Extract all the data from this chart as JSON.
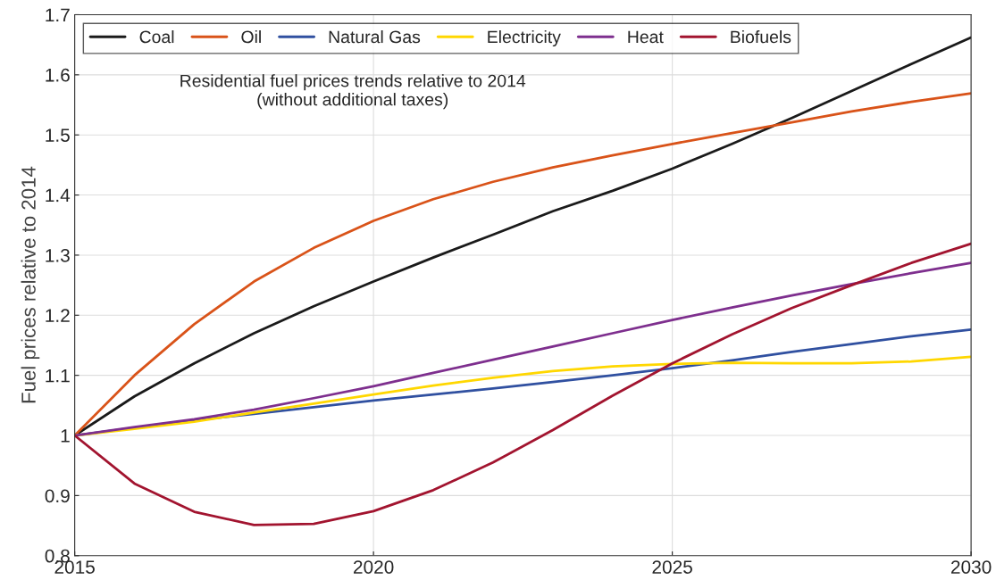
{
  "chart_data": {
    "type": "line",
    "title": "Residential fuel prices trends relative to 2014\n(without additional taxes)",
    "ylabel": "Fuel prices relative to 2014",
    "x": [
      2015,
      2016,
      2017,
      2018,
      2019,
      2020,
      2021,
      2022,
      2023,
      2024,
      2025,
      2026,
      2027,
      2028,
      2029,
      2030
    ],
    "series": [
      {
        "name": "Coal",
        "color": "#1a1a1a",
        "values": [
          1.0,
          1.065,
          1.12,
          1.17,
          1.215,
          1.256,
          1.296,
          1.334,
          1.373,
          1.407,
          1.444,
          1.485,
          1.528,
          1.573,
          1.618,
          1.662
        ]
      },
      {
        "name": "Oil",
        "color": "#d95319",
        "values": [
          1.0,
          1.1,
          1.185,
          1.256,
          1.312,
          1.357,
          1.393,
          1.422,
          1.446,
          1.466,
          1.485,
          1.503,
          1.521,
          1.539,
          1.555,
          1.569
        ]
      },
      {
        "name": "Natural Gas",
        "color": "#3050a0",
        "values": [
          1.0,
          1.013,
          1.025,
          1.036,
          1.047,
          1.058,
          1.068,
          1.078,
          1.089,
          1.1,
          1.112,
          1.125,
          1.139,
          1.152,
          1.165,
          1.176
        ]
      },
      {
        "name": "Electricity",
        "color": "#ffd700",
        "values": [
          1.0,
          1.011,
          1.023,
          1.038,
          1.053,
          1.068,
          1.083,
          1.096,
          1.107,
          1.115,
          1.119,
          1.121,
          1.12,
          1.12,
          1.123,
          1.131
        ]
      },
      {
        "name": "Heat",
        "color": "#7e2f8e",
        "values": [
          1.0,
          1.014,
          1.027,
          1.043,
          1.062,
          1.082,
          1.104,
          1.126,
          1.148,
          1.17,
          1.192,
          1.213,
          1.233,
          1.252,
          1.27,
          1.287
        ]
      },
      {
        "name": "Biofuels",
        "color": "#a2142f",
        "values": [
          1.0,
          0.92,
          0.873,
          0.851,
          0.853,
          0.874,
          0.909,
          0.955,
          1.009,
          1.066,
          1.12,
          1.168,
          1.212,
          1.25,
          1.287,
          1.319
        ]
      }
    ],
    "xlim": [
      2015,
      2030
    ],
    "xticks": [
      2015,
      2020,
      2025,
      2030
    ],
    "ylim": [
      0.8,
      1.7
    ],
    "yticks": [
      0.8,
      0.9,
      1,
      1.1,
      1.2,
      1.3,
      1.4,
      1.5,
      1.6,
      1.7
    ],
    "grid": true,
    "legend": "top left",
    "marker": "none",
    "line_style": "solid"
  }
}
